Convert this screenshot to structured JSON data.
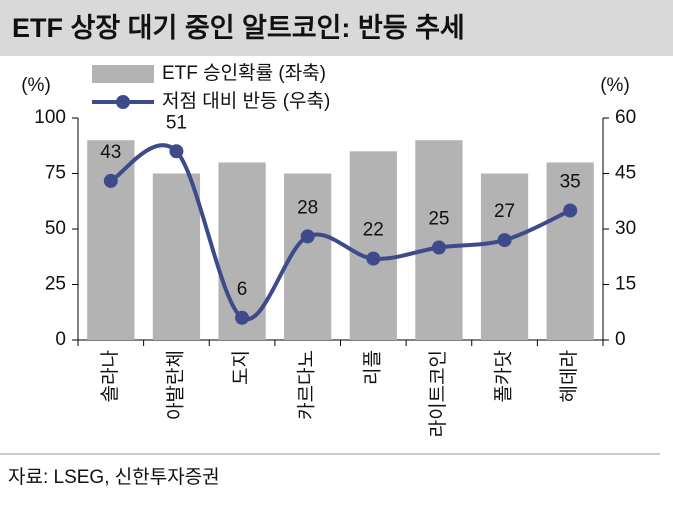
{
  "chart_data": {
    "type": "combo",
    "title": "ETF 상장 대기 중인 알트코인: 반등 추세",
    "y_label": "(%)",
    "y2_label": "(%)",
    "source": "자료: LSEG, 신한투자증권",
    "categories": [
      "솔라나",
      "아발란체",
      "도지",
      "카르다노",
      "리플",
      "라이트코인",
      "폴카닷",
      "헤데라"
    ],
    "series": [
      {
        "name": "ETF 승인확률 (좌축)",
        "type": "bar",
        "color": "#b3b3b3",
        "values": [
          90,
          75,
          80,
          75,
          85,
          90,
          75,
          80
        ]
      },
      {
        "name": "저점 대비 반등 (우축)",
        "type": "line",
        "axis": "y2",
        "color": "#3f4a8a",
        "values": [
          43,
          51,
          6,
          28,
          22,
          25,
          27,
          35
        ]
      }
    ],
    "ylim": [
      0,
      100
    ],
    "yticks": [
      0,
      25,
      50,
      75,
      100
    ],
    "y2lim": [
      0,
      60
    ],
    "y2ticks": [
      0,
      15,
      30,
      45,
      60
    ],
    "grid": false
  }
}
